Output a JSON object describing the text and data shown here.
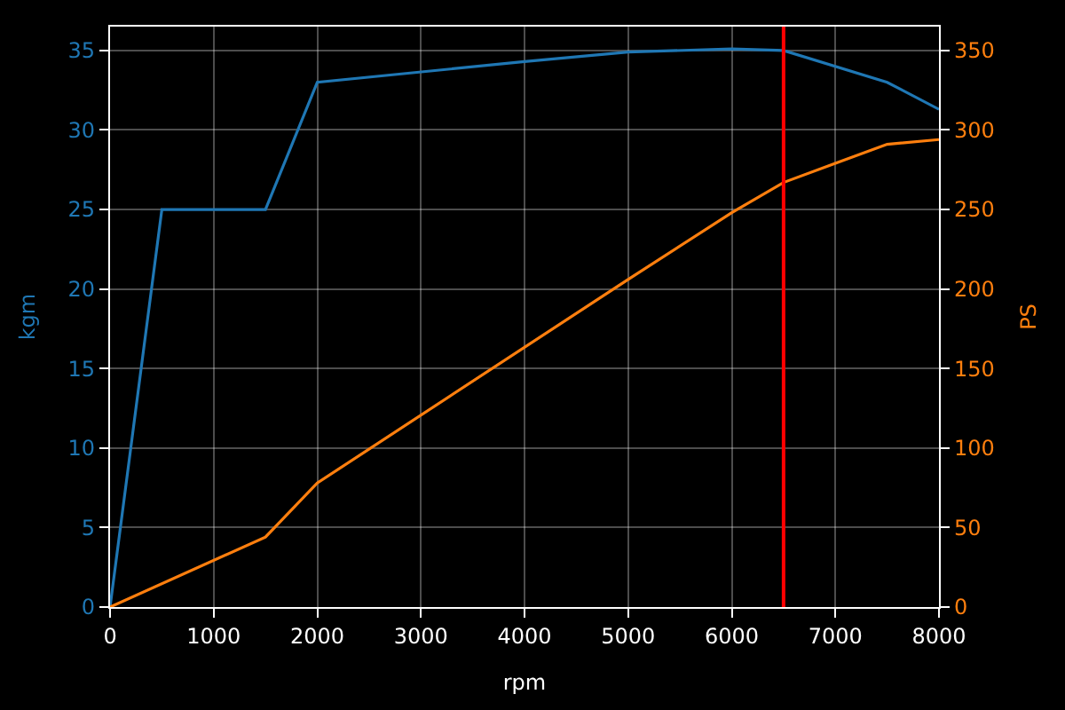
{
  "chart_data": {
    "type": "line",
    "xlabel": "rpm",
    "ylabel": "kgm",
    "y2label": "PS",
    "xlim": [
      0,
      8000
    ],
    "xticks": [
      0,
      1000,
      2000,
      3000,
      4000,
      5000,
      6000,
      7000,
      8000
    ],
    "ylim": [
      0,
      36.5
    ],
    "yticks": [
      0,
      5,
      10,
      15,
      20,
      25,
      30,
      35
    ],
    "y2lim": [
      0,
      365
    ],
    "y2ticks": [
      0,
      50,
      100,
      150,
      200,
      250,
      300,
      350
    ],
    "grid": true,
    "series": [
      {
        "color": "#1f77b4",
        "x": [
          0,
          500,
          1500,
          2000,
          4000,
          5000,
          6000,
          6500,
          7500,
          8000
        ],
        "values": [
          0,
          25,
          25,
          33,
          34.3,
          34.9,
          35.1,
          35,
          33,
          31.3
        ]
      },
      {
        "color": "#ff7f0e",
        "axis": "y2",
        "x": [
          0,
          1500,
          2000,
          5000,
          6000,
          6500,
          7000,
          7500,
          8000
        ],
        "values": [
          0,
          44,
          78,
          206,
          248,
          267,
          279,
          291,
          294
        ]
      }
    ],
    "ref_lines": [
      {
        "axis": "x",
        "value": 6500,
        "color": "#ff0000"
      }
    ]
  }
}
